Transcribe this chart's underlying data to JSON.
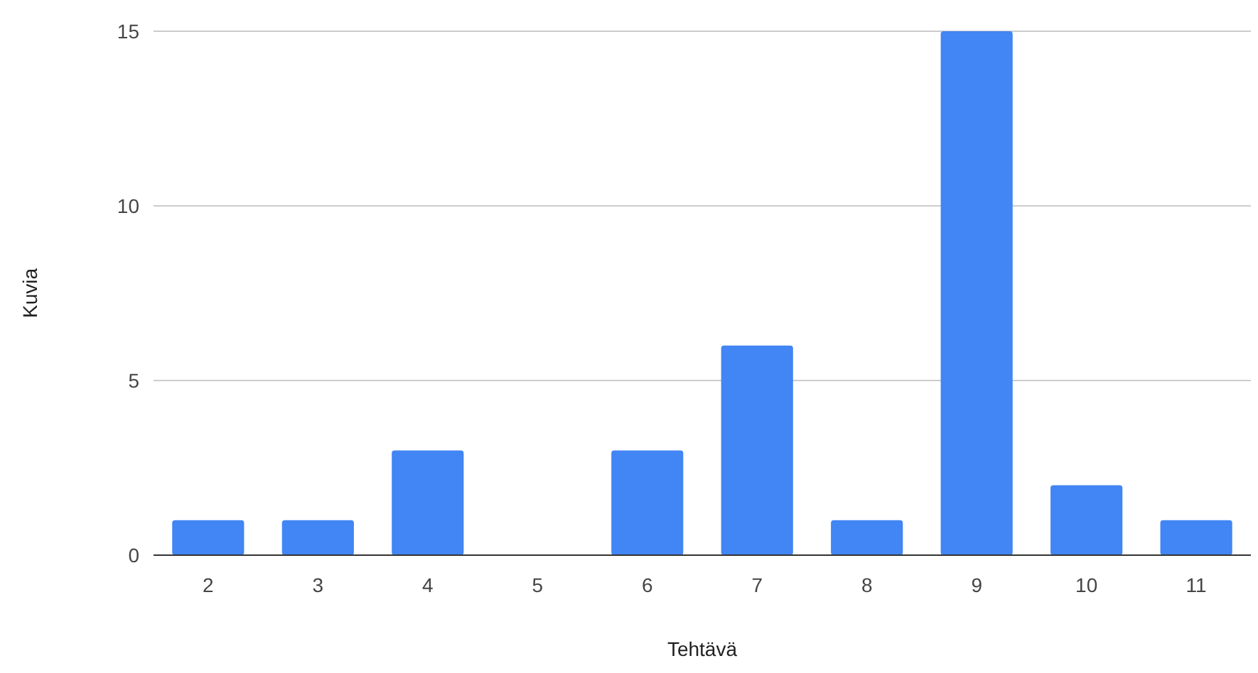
{
  "chart_data": {
    "type": "bar",
    "xlabel": "Tehtävä",
    "ylabel": "Kuvia",
    "categories": [
      "2",
      "3",
      "4",
      "5",
      "6",
      "7",
      "8",
      "9",
      "10",
      "11"
    ],
    "values": [
      1,
      1,
      3,
      0,
      3,
      6,
      1,
      15,
      2,
      1
    ],
    "color": "#4285f4",
    "ylim": [
      0,
      15
    ],
    "yticks": [
      0,
      5,
      10,
      15
    ],
    "grid": "y"
  }
}
